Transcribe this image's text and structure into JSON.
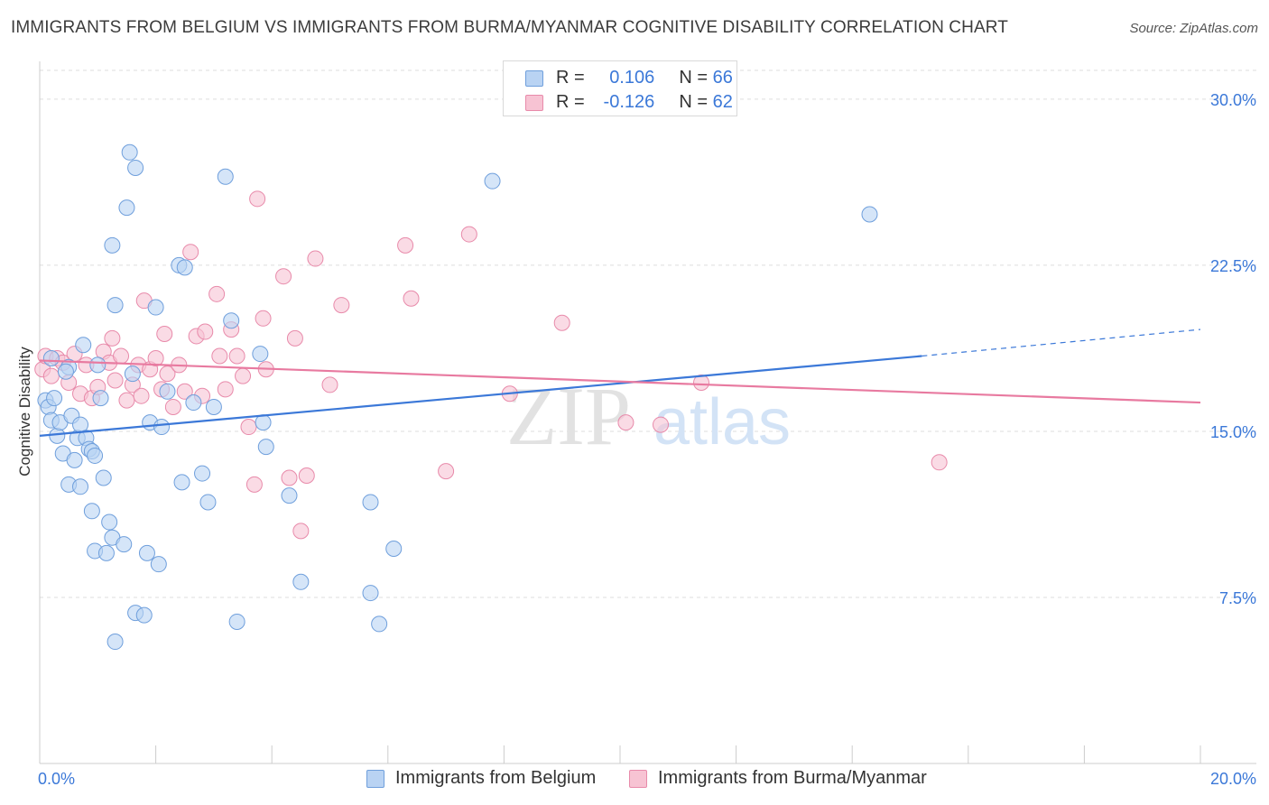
{
  "header": {
    "title": "IMMIGRANTS FROM BELGIUM VS IMMIGRANTS FROM BURMA/MYANMAR COGNITIVE DISABILITY CORRELATION CHART",
    "source": "Source: ZipAtlas.com"
  },
  "colors": {
    "blue": "#3b78d8",
    "blue_fill": "#b9d3f3",
    "pink": "#e87aa0",
    "pink_fill": "#f7c3d3",
    "axis_text": "#3b78d8",
    "grid": "#dddddd"
  },
  "legend": {
    "rows": [
      {
        "r_label": "R =",
        "r_value": "0.106",
        "n_label": "N =",
        "n_value": "66"
      },
      {
        "r_label": "R =",
        "r_value": "-0.126",
        "n_label": "N =",
        "n_value": "62"
      }
    ]
  },
  "bottom_legend": {
    "series_a": "Immigrants from Belgium",
    "series_b": "Immigrants from Burma/Myanmar"
  },
  "chart_data": {
    "type": "scatter",
    "title": "IMMIGRANTS FROM BELGIUM VS IMMIGRANTS FROM BURMA/MYANMAR COGNITIVE DISABILITY CORRELATION CHART",
    "xlabel": "",
    "ylabel": "Cognitive Disability",
    "xlim": [
      0,
      20
    ],
    "ylim": [
      0,
      31.3
    ],
    "x_tick_labels": [
      "0.0%",
      "20.0%"
    ],
    "y_ticks": [
      7.5,
      15.0,
      22.5,
      30.0
    ],
    "y_tick_labels": [
      "7.5%",
      "15.0%",
      "22.5%",
      "30.0%"
    ],
    "grid": true,
    "watermark": {
      "zip": "ZIP",
      "atlas": "atlas"
    },
    "series": [
      {
        "name": "Immigrants from Belgium",
        "color": "blue",
        "r": 0.106,
        "n": 66,
        "trend": {
          "x0": 0,
          "y0": 14.8,
          "x1": 15.2,
          "y1": 18.4,
          "dash_to_x": 20,
          "dash_to_y": 19.6
        },
        "points": [
          [
            0.1,
            16.4
          ],
          [
            0.15,
            16.1
          ],
          [
            0.2,
            15.5
          ],
          [
            0.25,
            16.5
          ],
          [
            0.3,
            14.8
          ],
          [
            0.35,
            15.4
          ],
          [
            0.4,
            14.0
          ],
          [
            0.5,
            17.9
          ],
          [
            0.5,
            12.6
          ],
          [
            0.55,
            15.7
          ],
          [
            0.6,
            13.7
          ],
          [
            0.65,
            14.7
          ],
          [
            0.7,
            12.5
          ],
          [
            0.7,
            15.3
          ],
          [
            0.75,
            18.9
          ],
          [
            0.8,
            14.7
          ],
          [
            0.85,
            14.2
          ],
          [
            0.9,
            14.1
          ],
          [
            0.9,
            11.4
          ],
          [
            0.95,
            13.9
          ],
          [
            0.95,
            9.6
          ],
          [
            1.0,
            18.0
          ],
          [
            1.05,
            16.5
          ],
          [
            1.1,
            12.9
          ],
          [
            1.15,
            9.5
          ],
          [
            1.2,
            10.9
          ],
          [
            1.25,
            23.4
          ],
          [
            1.25,
            10.2
          ],
          [
            1.3,
            20.7
          ],
          [
            1.3,
            5.5
          ],
          [
            1.5,
            25.1
          ],
          [
            1.55,
            27.6
          ],
          [
            1.6,
            17.6
          ],
          [
            1.65,
            6.8
          ],
          [
            1.65,
            26.9
          ],
          [
            1.8,
            6.7
          ],
          [
            1.85,
            9.5
          ],
          [
            1.9,
            15.4
          ],
          [
            2.0,
            20.6
          ],
          [
            2.05,
            9.0
          ],
          [
            2.1,
            15.2
          ],
          [
            2.2,
            16.8
          ],
          [
            2.4,
            22.5
          ],
          [
            2.45,
            12.7
          ],
          [
            2.5,
            22.4
          ],
          [
            2.65,
            16.3
          ],
          [
            2.8,
            13.1
          ],
          [
            2.9,
            11.8
          ],
          [
            3.0,
            16.1
          ],
          [
            3.2,
            26.5
          ],
          [
            3.3,
            20.0
          ],
          [
            3.4,
            6.4
          ],
          [
            3.8,
            18.5
          ],
          [
            3.85,
            15.4
          ],
          [
            3.9,
            14.3
          ],
          [
            4.3,
            12.1
          ],
          [
            4.5,
            8.2
          ],
          [
            5.7,
            11.8
          ],
          [
            5.7,
            7.7
          ],
          [
            5.85,
            6.3
          ],
          [
            6.1,
            9.7
          ],
          [
            7.8,
            26.3
          ],
          [
            14.3,
            24.8
          ],
          [
            0.2,
            18.3
          ],
          [
            0.45,
            17.7
          ],
          [
            1.45,
            9.9
          ]
        ]
      },
      {
        "name": "Immigrants from Burma/Myanmar",
        "color": "pink",
        "r": -0.126,
        "n": 62,
        "trend": {
          "x0": 0,
          "y0": 18.2,
          "x1": 20,
          "y1": 16.3
        },
        "points": [
          [
            0.05,
            17.8
          ],
          [
            0.1,
            18.4
          ],
          [
            0.2,
            17.5
          ],
          [
            0.3,
            18.3
          ],
          [
            0.4,
            18.1
          ],
          [
            0.5,
            17.2
          ],
          [
            0.6,
            18.5
          ],
          [
            0.7,
            16.7
          ],
          [
            0.8,
            18.0
          ],
          [
            0.9,
            16.5
          ],
          [
            1.0,
            17.0
          ],
          [
            1.1,
            18.6
          ],
          [
            1.2,
            18.1
          ],
          [
            1.3,
            17.3
          ],
          [
            1.4,
            18.4
          ],
          [
            1.5,
            16.4
          ],
          [
            1.6,
            17.1
          ],
          [
            1.7,
            18.0
          ],
          [
            1.75,
            16.6
          ],
          [
            1.8,
            20.9
          ],
          [
            1.9,
            17.8
          ],
          [
            2.0,
            18.3
          ],
          [
            2.1,
            16.9
          ],
          [
            2.15,
            19.4
          ],
          [
            2.2,
            17.6
          ],
          [
            2.3,
            16.1
          ],
          [
            2.4,
            18.0
          ],
          [
            2.5,
            16.8
          ],
          [
            2.6,
            23.1
          ],
          [
            2.7,
            19.3
          ],
          [
            2.8,
            16.6
          ],
          [
            2.85,
            19.5
          ],
          [
            3.05,
            21.2
          ],
          [
            3.1,
            18.4
          ],
          [
            3.2,
            16.9
          ],
          [
            3.3,
            19.6
          ],
          [
            3.4,
            18.4
          ],
          [
            3.5,
            17.5
          ],
          [
            3.6,
            15.2
          ],
          [
            3.7,
            12.6
          ],
          [
            3.75,
            25.5
          ],
          [
            3.85,
            20.1
          ],
          [
            3.9,
            17.8
          ],
          [
            4.2,
            22.0
          ],
          [
            4.3,
            12.9
          ],
          [
            4.4,
            19.2
          ],
          [
            4.5,
            10.5
          ],
          [
            4.6,
            13.0
          ],
          [
            4.75,
            22.8
          ],
          [
            5.0,
            17.1
          ],
          [
            5.2,
            20.7
          ],
          [
            6.3,
            23.4
          ],
          [
            6.4,
            21.0
          ],
          [
            7.0,
            13.2
          ],
          [
            7.4,
            23.9
          ],
          [
            8.1,
            16.7
          ],
          [
            9.0,
            19.9
          ],
          [
            10.1,
            15.4
          ],
          [
            10.7,
            15.3
          ],
          [
            11.4,
            17.2
          ],
          [
            15.5,
            13.6
          ],
          [
            1.25,
            19.2
          ]
        ]
      }
    ]
  }
}
